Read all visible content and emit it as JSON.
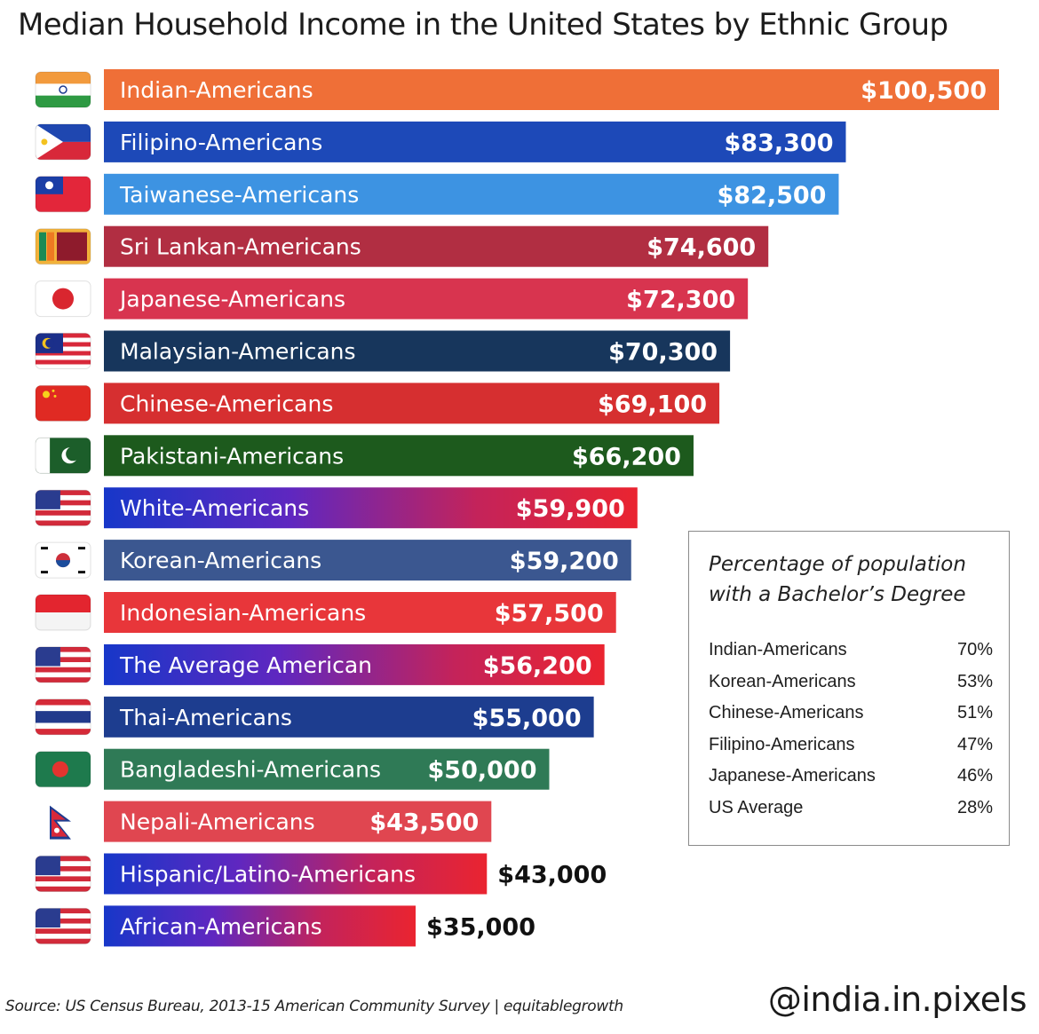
{
  "chart_data": {
    "type": "bar",
    "orientation": "horizontal",
    "title": "Median Household Income in the United States  by Ethnic Group",
    "categories": [
      "Indian-Americans",
      "Filipino-Americans",
      "Taiwanese-Americans",
      "Sri Lankan-Americans",
      "Japanese-Americans",
      "Malaysian-Americans",
      "Chinese-Americans",
      "Pakistani-Americans",
      "White-Americans",
      "Korean-Americans",
      "Indonesian-Americans",
      "The Average American",
      "Thai-Americans",
      "Bangladeshi-Americans",
      "Nepali-Americans",
      "Hispanic/Latino-Americans",
      "African-Americans"
    ],
    "values": [
      100500,
      83300,
      82500,
      74600,
      72300,
      70300,
      69100,
      66200,
      59900,
      59200,
      57500,
      56200,
      55000,
      50000,
      43500,
      43000,
      35000
    ],
    "value_labels": [
      "$100,500",
      "$83,300",
      "$82,500",
      "$74,600",
      "$72,300",
      "$70,300",
      "$69,100",
      "$66,200",
      "$59,900",
      "$59,200",
      "$57,500",
      "$56,200",
      "$55,000",
      "$50,000",
      "$43,500",
      "$43,000",
      "$35,000"
    ],
    "colors": [
      "#ef6f37",
      "#1d49b8",
      "#3d93e2",
      "#b12e42",
      "#d8344f",
      "#17365c",
      "#d62f30",
      "#1d5a1d",
      "gradient:#1737c9:#e8222f",
      "#3b5790",
      "#e8363a",
      "gradient:#1737c9:#e8222f",
      "#1d3d8f",
      "#2f7a56",
      "#e04650",
      "gradient:#1737c9:#e8222f",
      "gradient:#1737c9:#e8222f"
    ],
    "flags": [
      "india-flag-icon",
      "philippines-flag-icon",
      "taiwan-flag-icon",
      "sri-lanka-flag-icon",
      "japan-flag-icon",
      "malaysia-flag-icon",
      "china-flag-icon",
      "pakistan-flag-icon",
      "usa-flag-icon",
      "south-korea-flag-icon",
      "indonesia-flag-icon",
      "usa-flag-icon",
      "thailand-flag-icon",
      "bangladesh-flag-icon",
      "nepal-flag-icon",
      "usa-flag-icon",
      "usa-flag-icon"
    ],
    "xlim": [
      0,
      100500
    ],
    "grid": false,
    "legend": "none"
  },
  "inset": {
    "title": "Percentage of population with a Bachelor’s Degree",
    "rows": [
      {
        "group": "Indian-Americans",
        "pct": "70%"
      },
      {
        "group": "Korean-Americans",
        "pct": "53%"
      },
      {
        "group": "Chinese-Americans",
        "pct": "51%"
      },
      {
        "group": "Filipino-Americans",
        "pct": "47%"
      },
      {
        "group": "Japanese-Americans",
        "pct": "46%"
      },
      {
        "group": "US Average",
        "pct": "28%"
      }
    ]
  },
  "footer": {
    "source": "Source: US Census Bureau, 2013-15 American Community Survey | equitablegrowth",
    "handle": "@india.in.pixels"
  }
}
